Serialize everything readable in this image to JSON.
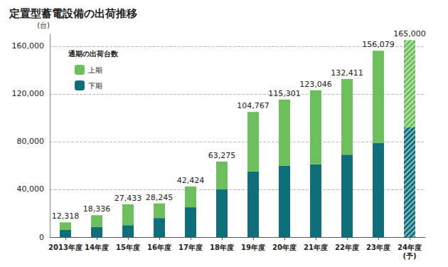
{
  "chart_data": {
    "type": "bar",
    "title": "定置型蓄電設備の出荷推移",
    "y_label": "(台)",
    "legend_title": "通期の出荷台数",
    "categories": [
      "2013年度",
      "14年度",
      "15年度",
      "16年度",
      "17年度",
      "18年度",
      "19年度",
      "20年度",
      "21年度",
      "22年度",
      "23年度",
      "24年度\n(予)"
    ],
    "series": [
      {
        "name": "下期",
        "color": "#0e6e7a",
        "values": [
          6000,
          8500,
          10000,
          16000,
          25000,
          40000,
          55000,
          60000,
          61000,
          69000,
          79000,
          92000
        ]
      },
      {
        "name": "上期",
        "color": "#6cbf5a",
        "values": [
          6318,
          9836,
          17433,
          12245,
          17424,
          23275,
          49767,
          55301,
          62046,
          63411,
          77079,
          73000
        ]
      }
    ],
    "totals": [
      12318,
      18336,
      27433,
      28245,
      42424,
      63275,
      104767,
      115301,
      123046,
      132411,
      156079,
      165000
    ],
    "total_labels": [
      "12,318",
      "18,336",
      "27,433",
      "28,245",
      "42,424",
      "63,275",
      "104,767",
      "115,301",
      "123,046",
      "132,411",
      "156,079",
      "165,000"
    ],
    "stacked": true,
    "ylim": [
      0,
      170000
    ],
    "yticks": [
      0,
      {
        "value": 40000,
        "label": "40,000"
      },
      {
        "value": 80000,
        "label": "80,000"
      },
      {
        "value": 120000,
        "label": "120,000"
      },
      {
        "value": 160000,
        "label": "160,000"
      }
    ],
    "grid": true,
    "legend": "upper left"
  }
}
